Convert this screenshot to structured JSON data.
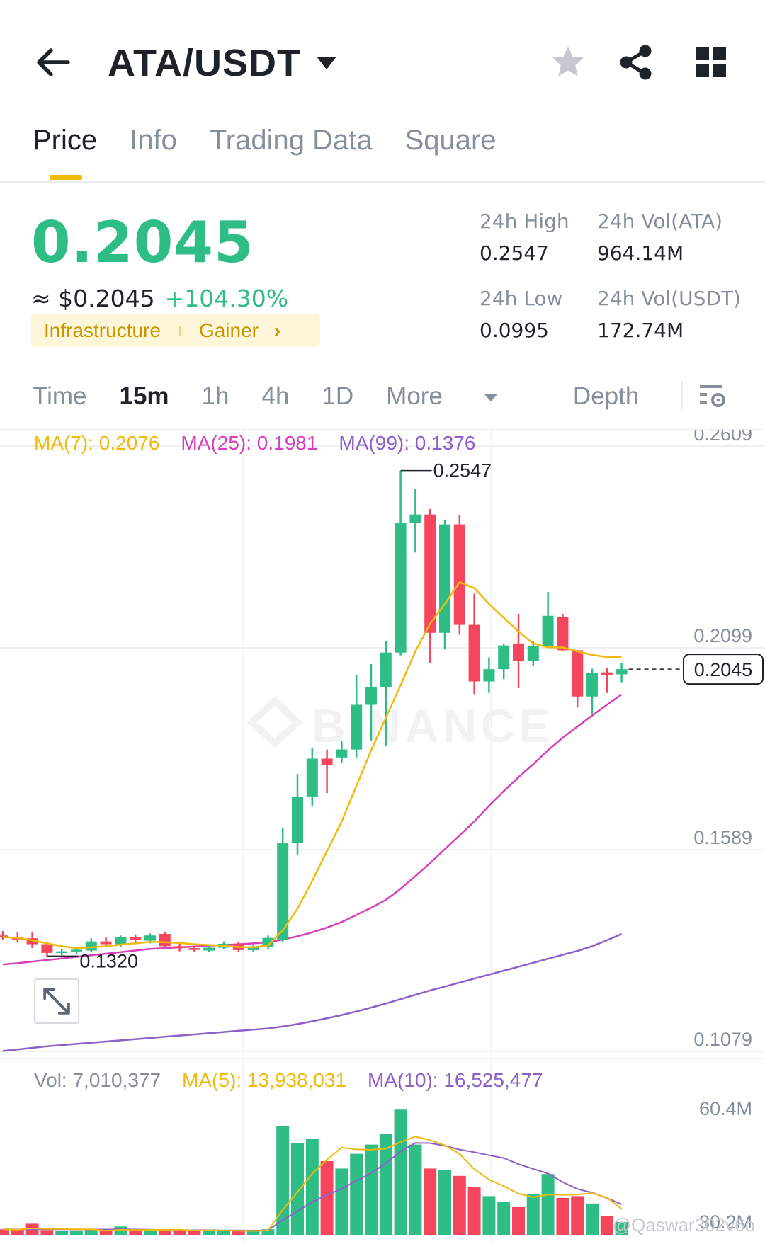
{
  "header": {
    "pair": "ATA/USDT",
    "icons": [
      "back-arrow-icon",
      "star-icon",
      "share-icon",
      "grid-icon"
    ]
  },
  "tabs": [
    {
      "label": "Price",
      "active": true
    },
    {
      "label": "Info",
      "active": false
    },
    {
      "label": "Trading Data",
      "active": false
    },
    {
      "label": "Square",
      "active": false
    }
  ],
  "ticker": {
    "price": "0.2045",
    "usd_approx": "≈ $0.2045",
    "change": "+104.30%",
    "tag_sector": "Infrastructure",
    "tag_gainer": "Gainer",
    "high_label": "24h High",
    "high_value": "0.2547",
    "low_label": "24h Low",
    "low_value": "0.0995",
    "vol_ata_label": "24h Vol(ATA)",
    "vol_ata_value": "964.14M",
    "vol_usdt_label": "24h Vol(USDT)",
    "vol_usdt_value": "172.74M"
  },
  "intervals": {
    "items": [
      "Time",
      "15m",
      "1h",
      "4h",
      "1D"
    ],
    "active": "15m",
    "more": "More",
    "depth": "Depth"
  },
  "ma_legend": {
    "ma7": "MA(7): 0.2076",
    "ma25": "MA(25): 0.1981",
    "ma99": "MA(99): 0.1376"
  },
  "vol_legend": {
    "vol": "Vol: 7,010,377",
    "ma5": "MA(5): 13,938,031",
    "ma10": "MA(10): 16,525,477"
  },
  "watermark": "BINANCE",
  "credit": "@Qaswar302v6o",
  "colors": {
    "up": "#2ebd85",
    "down": "#f6465d",
    "ma7": "#f0b90b",
    "ma25": "#d63fbb",
    "ma99": "#8e5fc9",
    "accent": "#f0b90b"
  },
  "chart_data": {
    "type": "candlestick",
    "interval": "15m",
    "y_ticks": [
      "0.2609",
      "0.2099",
      "0.1589",
      "0.1079"
    ],
    "ylim": [
      0.1079,
      0.2609
    ],
    "current_price_label": "0.2045",
    "high_marker": "0.2547",
    "low_marker": "0.1320",
    "vol_ticks": [
      "60.4M",
      "30.2M"
    ],
    "candles": [
      {
        "o": 0.1372,
        "h": 0.1383,
        "l": 0.1362,
        "c": 0.1369
      },
      {
        "o": 0.1369,
        "h": 0.138,
        "l": 0.1355,
        "c": 0.1362
      },
      {
        "o": 0.1365,
        "h": 0.138,
        "l": 0.134,
        "c": 0.135
      },
      {
        "o": 0.135,
        "h": 0.1355,
        "l": 0.132,
        "c": 0.1328
      },
      {
        "o": 0.1328,
        "h": 0.1338,
        "l": 0.1322,
        "c": 0.1332
      },
      {
        "o": 0.1332,
        "h": 0.1342,
        "l": 0.1326,
        "c": 0.1336
      },
      {
        "o": 0.1334,
        "h": 0.1365,
        "l": 0.133,
        "c": 0.1357
      },
      {
        "o": 0.1357,
        "h": 0.1367,
        "l": 0.1342,
        "c": 0.135
      },
      {
        "o": 0.1348,
        "h": 0.1372,
        "l": 0.1343,
        "c": 0.1367
      },
      {
        "o": 0.1367,
        "h": 0.1375,
        "l": 0.135,
        "c": 0.1361
      },
      {
        "o": 0.1359,
        "h": 0.1377,
        "l": 0.1352,
        "c": 0.1372
      },
      {
        "o": 0.1376,
        "h": 0.1381,
        "l": 0.1343,
        "c": 0.1345
      },
      {
        "o": 0.1345,
        "h": 0.1352,
        "l": 0.1332,
        "c": 0.134
      },
      {
        "o": 0.134,
        "h": 0.1346,
        "l": 0.133,
        "c": 0.1337
      },
      {
        "o": 0.1334,
        "h": 0.135,
        "l": 0.133,
        "c": 0.1341
      },
      {
        "o": 0.1341,
        "h": 0.1357,
        "l": 0.1337,
        "c": 0.1351
      },
      {
        "o": 0.1351,
        "h": 0.1357,
        "l": 0.133,
        "c": 0.1335
      },
      {
        "o": 0.1335,
        "h": 0.1349,
        "l": 0.133,
        "c": 0.1344
      },
      {
        "o": 0.1344,
        "h": 0.1372,
        "l": 0.1338,
        "c": 0.1366
      },
      {
        "o": 0.136,
        "h": 0.1645,
        "l": 0.1356,
        "c": 0.1605
      },
      {
        "o": 0.1605,
        "h": 0.178,
        "l": 0.1575,
        "c": 0.1722
      },
      {
        "o": 0.1722,
        "h": 0.1845,
        "l": 0.1698,
        "c": 0.1819
      },
      {
        "o": 0.1819,
        "h": 0.1842,
        "l": 0.1732,
        "c": 0.1802
      },
      {
        "o": 0.1822,
        "h": 0.1864,
        "l": 0.1807,
        "c": 0.1842
      },
      {
        "o": 0.1842,
        "h": 0.203,
        "l": 0.1822,
        "c": 0.1955
      },
      {
        "o": 0.1955,
        "h": 0.2058,
        "l": 0.1865,
        "c": 0.2
      },
      {
        "o": 0.2,
        "h": 0.2115,
        "l": 0.1852,
        "c": 0.2087
      },
      {
        "o": 0.2087,
        "h": 0.2547,
        "l": 0.208,
        "c": 0.2415
      },
      {
        "o": 0.2415,
        "h": 0.25,
        "l": 0.234,
        "c": 0.2436
      },
      {
        "o": 0.2436,
        "h": 0.245,
        "l": 0.206,
        "c": 0.2137
      },
      {
        "o": 0.2137,
        "h": 0.2422,
        "l": 0.2095,
        "c": 0.2411
      },
      {
        "o": 0.2411,
        "h": 0.2435,
        "l": 0.2132,
        "c": 0.2157
      },
      {
        "o": 0.2157,
        "h": 0.2236,
        "l": 0.1982,
        "c": 0.2014
      },
      {
        "o": 0.2014,
        "h": 0.2075,
        "l": 0.1985,
        "c": 0.2045
      },
      {
        "o": 0.2045,
        "h": 0.211,
        "l": 0.202,
        "c": 0.2105
      },
      {
        "o": 0.211,
        "h": 0.2185,
        "l": 0.1997,
        "c": 0.2065
      },
      {
        "o": 0.2065,
        "h": 0.2116,
        "l": 0.2054,
        "c": 0.2104
      },
      {
        "o": 0.2104,
        "h": 0.224,
        "l": 0.2098,
        "c": 0.218
      },
      {
        "o": 0.2176,
        "h": 0.2185,
        "l": 0.209,
        "c": 0.2093
      },
      {
        "o": 0.2093,
        "h": 0.2093,
        "l": 0.1948,
        "c": 0.1976
      },
      {
        "o": 0.1976,
        "h": 0.2046,
        "l": 0.1932,
        "c": 0.2035
      },
      {
        "o": 0.2037,
        "h": 0.2048,
        "l": 0.1985,
        "c": 0.203
      },
      {
        "o": 0.2032,
        "h": 0.206,
        "l": 0.2012,
        "c": 0.2045
      }
    ],
    "volume": [
      3.0,
      2.5,
      6.0,
      2.5,
      2.0,
      2.0,
      2.5,
      2.0,
      4.5,
      2.0,
      2.5,
      2.5,
      2.5,
      2.0,
      2.5,
      2.0,
      2.0,
      2.0,
      3.0,
      59.0,
      50.0,
      52.0,
      40.0,
      36.0,
      44.0,
      49.0,
      55.0,
      68.0,
      49.0,
      36.0,
      35.0,
      32.0,
      26.0,
      21.0,
      18.0,
      15.0,
      22.0,
      33.0,
      20.0,
      21.0,
      17.0,
      10.0,
      7.0
    ],
    "ma7_line": [
      0.1368,
      0.1366,
      0.136,
      0.1352,
      0.1345,
      0.134,
      0.1342,
      0.1345,
      0.1349,
      0.1352,
      0.1356,
      0.1355,
      0.1353,
      0.135,
      0.1348,
      0.1346,
      0.1343,
      0.1342,
      0.1347,
      0.1385,
      0.144,
      0.151,
      0.1585,
      0.166,
      0.175,
      0.184,
      0.1922,
      0.2005,
      0.209,
      0.216,
      0.221,
      0.2265,
      0.225,
      0.221,
      0.2175,
      0.214,
      0.211,
      0.21,
      0.21,
      0.209,
      0.2081,
      0.2076,
      0.2076
    ],
    "ma25_line": [
      0.1299,
      0.1302,
      0.1306,
      0.131,
      0.1314,
      0.1318,
      0.1322,
      0.1326,
      0.133,
      0.1334,
      0.1338,
      0.134,
      0.1342,
      0.1344,
      0.1346,
      0.1348,
      0.135,
      0.1352,
      0.1355,
      0.1362,
      0.137,
      0.138,
      0.1392,
      0.1406,
      0.1424,
      0.1442,
      0.1462,
      0.149,
      0.1522,
      0.1555,
      0.159,
      0.1625,
      0.166,
      0.17,
      0.1737,
      0.1772,
      0.1805,
      0.184,
      0.1872,
      0.19,
      0.1928,
      0.1955,
      0.1981
    ],
    "ma99_line": [
      0.108,
      0.1084,
      0.1088,
      0.1092,
      0.1095,
      0.1098,
      0.1101,
      0.1104,
      0.1107,
      0.111,
      0.1113,
      0.1116,
      0.1119,
      0.1122,
      0.1125,
      0.1128,
      0.1131,
      0.1134,
      0.1137,
      0.1142,
      0.1148,
      0.1155,
      0.1163,
      0.1171,
      0.118,
      0.119,
      0.12,
      0.1211,
      0.1222,
      0.1233,
      0.1243,
      0.1253,
      0.1263,
      0.1273,
      0.1283,
      0.1293,
      0.1303,
      0.1313,
      0.1323,
      0.1333,
      0.1345,
      0.136,
      0.1376
    ],
    "vol_ma5_line": [
      3.0,
      2.8,
      3.5,
      3.2,
      3.2,
      3.0,
      3.0,
      2.2,
      2.7,
      2.6,
      2.7,
      2.7,
      2.8,
      2.3,
      2.4,
      2.3,
      2.2,
      2.1,
      2.3,
      13.6,
      23.2,
      33.2,
      40.8,
      47.4,
      46.4,
      46.2,
      46.8,
      50.4,
      53.4,
      51.4,
      48.6,
      44.0,
      35.6,
      30.0,
      26.4,
      22.4,
      20.4,
      21.8,
      21.6,
      21.8,
      22.6,
      20.2,
      14.0
    ],
    "vol_ma10_line": [
      3.0,
      2.9,
      3.0,
      3.0,
      3.0,
      2.9,
      2.9,
      2.9,
      3.0,
      2.9,
      2.8,
      2.6,
      2.5,
      2.5,
      2.5,
      2.4,
      2.4,
      2.3,
      2.4,
      8.0,
      12.8,
      17.8,
      21.6,
      25.0,
      29.3,
      33.6,
      38.8,
      45.3,
      49.9,
      49.8,
      48.3,
      46.3,
      44.9,
      43.2,
      41.7,
      38.4,
      35.8,
      33.3,
      28.6,
      24.9,
      22.9,
      20.0,
      16.5
    ]
  }
}
